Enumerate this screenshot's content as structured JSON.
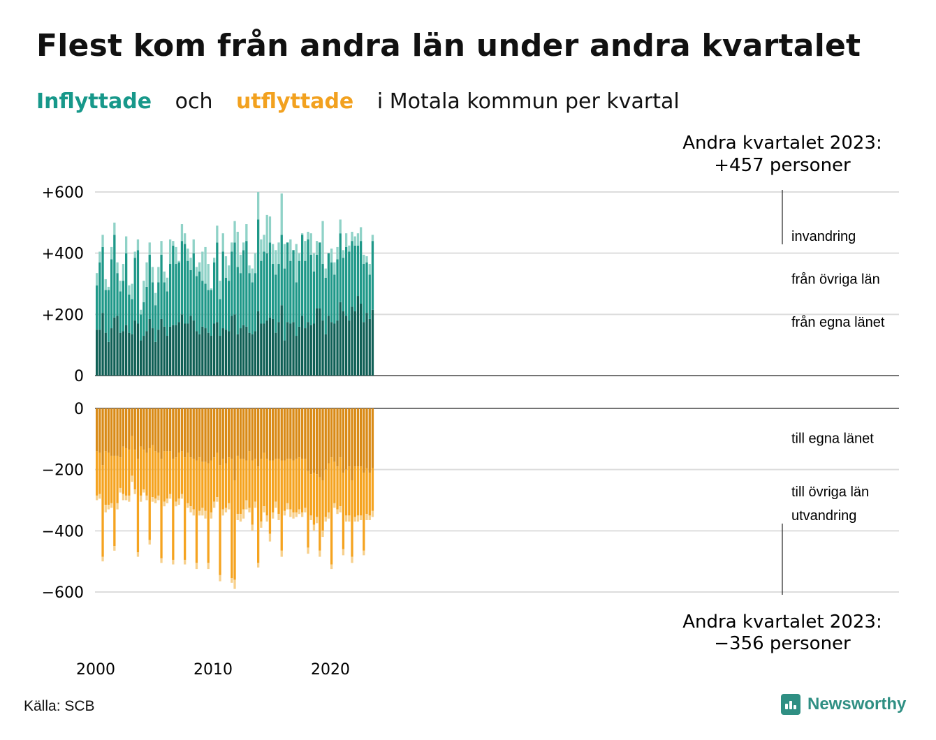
{
  "title": "Flest kom från andra län under andra kvartalet",
  "subtitle": {
    "in": "Inflyttade",
    "och": "och",
    "out": "utflyttade",
    "rest": "i Motala  kommun  per  kvartal"
  },
  "annotation_top": [
    "Andra kvartalet 2023:",
    "+457 personer"
  ],
  "annotation_bottom": [
    "Andra kvartalet 2023:",
    "−356 personer"
  ],
  "source": "Källa: SCB",
  "brand": "Newsworthy",
  "colors": {
    "in_egna": "#0f5f55",
    "in_ovriga": "#1e9888",
    "in_invandring": "#8fd2c7",
    "out_egna": "#d98a16",
    "out_ovriga": "#f5a31f",
    "out_utvandring": "#f7d08c",
    "grid": "#dddddd",
    "axis": "#222222"
  },
  "chart_data": [
    {
      "type": "bar",
      "stacked": true,
      "title": "Inflyttade",
      "x_axis": {
        "type": "quarter",
        "start": "2000Q1",
        "end": "2023Q2",
        "tick_labels": [
          "2000",
          "2010",
          "2020"
        ]
      },
      "y_ticks": [
        "+600",
        "+400",
        "+200",
        "0"
      ],
      "ylim": [
        0,
        600
      ],
      "series": [
        {
          "name": "från egna länet",
          "values": [
            150,
            150,
            205,
            140,
            110,
            155,
            190,
            195,
            140,
            145,
            165,
            140,
            135,
            180,
            170,
            115,
            130,
            145,
            185,
            155,
            110,
            150,
            185,
            160,
            130,
            160,
            165,
            165,
            175,
            200,
            170,
            170,
            195,
            180,
            145,
            135,
            160,
            155,
            140,
            130,
            170,
            175,
            130,
            155,
            150,
            145,
            195,
            200,
            135,
            155,
            165,
            160,
            140,
            135,
            145,
            210,
            170,
            170,
            180,
            190,
            185,
            140,
            175,
            230,
            115,
            175,
            170,
            175,
            130,
            160,
            195,
            155,
            175,
            165,
            170,
            220,
            220,
            180,
            135,
            195,
            175,
            170,
            180,
            240,
            210,
            195,
            180,
            225,
            210,
            260,
            235,
            175,
            205,
            185,
            215
          ]
        },
        {
          "name": "från övriga län",
          "values": [
            145,
            220,
            215,
            140,
            170,
            225,
            270,
            140,
            135,
            165,
            235,
            125,
            115,
            205,
            240,
            85,
            110,
            145,
            210,
            150,
            120,
            155,
            210,
            145,
            145,
            205,
            260,
            200,
            195,
            240,
            260,
            205,
            150,
            220,
            180,
            205,
            150,
            145,
            140,
            150,
            200,
            260,
            120,
            250,
            170,
            165,
            210,
            235,
            220,
            180,
            245,
            280,
            195,
            170,
            190,
            300,
            205,
            235,
            220,
            245,
            180,
            190,
            190,
            230,
            235,
            260,
            205,
            235,
            175,
            215,
            265,
            220,
            270,
            230,
            170,
            175,
            215,
            185,
            185,
            205,
            195,
            160,
            200,
            225,
            175,
            225,
            225,
            215,
            215,
            165,
            205,
            190,
            165,
            145,
            225
          ]
        },
        {
          "name": "invandring",
          "values": [
            40,
            35,
            40,
            35,
            10,
            40,
            40,
            35,
            35,
            55,
            55,
            30,
            50,
            20,
            35,
            15,
            70,
            80,
            40,
            50,
            40,
            50,
            45,
            35,
            45,
            80,
            15,
            55,
            5,
            55,
            35,
            40,
            40,
            45,
            30,
            30,
            95,
            120,
            85,
            5,
            15,
            55,
            60,
            60,
            70,
            50,
            30,
            70,
            115,
            60,
            25,
            55,
            25,
            45,
            65,
            90,
            70,
            55,
            125,
            85,
            65,
            80,
            70,
            135,
            80,
            0,
            70,
            0,
            125,
            25,
            5,
            65,
            25,
            70,
            60,
            45,
            0,
            140,
            30,
            0,
            45,
            40,
            40,
            45,
            25,
            45,
            20,
            30,
            30,
            40,
            45,
            30,
            20,
            35,
            20
          ]
        }
      ]
    },
    {
      "type": "bar",
      "stacked": true,
      "title": "Utflyttade",
      "x_axis": {
        "type": "quarter",
        "start": "2000Q1",
        "end": "2023Q2",
        "tick_labels": [
          "2000",
          "2010",
          "2020"
        ]
      },
      "y_ticks": [
        "0",
        "−200",
        "−400",
        "−600"
      ],
      "ylim": [
        -600,
        0
      ],
      "series": [
        {
          "name": "till egna länet",
          "values": [
            -140,
            -145,
            -185,
            -140,
            -145,
            -155,
            -155,
            -155,
            -160,
            -125,
            -130,
            -135,
            -90,
            -135,
            -165,
            -125,
            -135,
            -145,
            -130,
            -120,
            -140,
            -145,
            -165,
            -140,
            -140,
            -140,
            -165,
            -160,
            -145,
            -140,
            -160,
            -145,
            -160,
            -165,
            -170,
            -160,
            -175,
            -175,
            -180,
            -170,
            -160,
            -145,
            -185,
            -165,
            -180,
            -160,
            -165,
            -235,
            -155,
            -165,
            -165,
            -170,
            -140,
            -170,
            -165,
            -190,
            -165,
            -145,
            -165,
            -170,
            -170,
            -165,
            -165,
            -170,
            -170,
            -165,
            -165,
            -170,
            -165,
            -160,
            -165,
            -165,
            -205,
            -215,
            -210,
            -215,
            -225,
            -235,
            -200,
            -180,
            -160,
            -175,
            -190,
            -160,
            -210,
            -200,
            -190,
            -235,
            -190,
            -190,
            -190,
            -210,
            -195,
            -210,
            -195
          ]
        },
        {
          "name": "till övriga län",
          "values": [
            -145,
            -135,
            -300,
            -175,
            -170,
            -155,
            -295,
            -155,
            -100,
            -155,
            -155,
            -150,
            -130,
            -130,
            -305,
            -160,
            -130,
            -140,
            -300,
            -170,
            -155,
            -140,
            -325,
            -165,
            -155,
            -140,
            -330,
            -145,
            -150,
            -140,
            -335,
            -165,
            -160,
            -165,
            -335,
            -175,
            -150,
            -160,
            -325,
            -170,
            -145,
            -145,
            -360,
            -165,
            -145,
            -150,
            -390,
            -325,
            -190,
            -180,
            -165,
            -130,
            -185,
            -210,
            -140,
            -315,
            -205,
            -175,
            -185,
            -240,
            -170,
            -140,
            -180,
            -295,
            -165,
            -145,
            -165,
            -170,
            -175,
            -170,
            -175,
            -160,
            -250,
            -135,
            -170,
            -140,
            -240,
            -165,
            -155,
            -160,
            -350,
            -135,
            -140,
            -160,
            -250,
            -150,
            -160,
            -250,
            -165,
            -160,
            -160,
            -255,
            -150,
            -140,
            -140
          ]
        },
        {
          "name": "utvandring",
          "values": [
            -15,
            -15,
            -15,
            -25,
            -15,
            -15,
            -15,
            -20,
            -15,
            -20,
            -15,
            -20,
            -20,
            -15,
            -15,
            -20,
            -10,
            -15,
            -15,
            -15,
            -15,
            -15,
            -15,
            -15,
            -15,
            -15,
            -15,
            -15,
            -20,
            -15,
            -15,
            -15,
            -20,
            -20,
            -20,
            -15,
            -25,
            -25,
            -20,
            -20,
            -20,
            -15,
            -20,
            -20,
            -15,
            -20,
            -15,
            -30,
            -20,
            -25,
            -30,
            -30,
            -15,
            -20,
            -20,
            -15,
            -20,
            -20,
            -20,
            -25,
            -20,
            -20,
            -20,
            -20,
            -15,
            -20,
            -25,
            -20,
            -15,
            -15,
            -15,
            -15,
            -20,
            -15,
            -20,
            -20,
            -20,
            -20,
            -15,
            -20,
            -15,
            -15,
            -15,
            -20,
            -20,
            -20,
            -20,
            -20,
            -15,
            -20,
            -15,
            -15,
            -20,
            -15,
            -20
          ]
        }
      ]
    }
  ]
}
